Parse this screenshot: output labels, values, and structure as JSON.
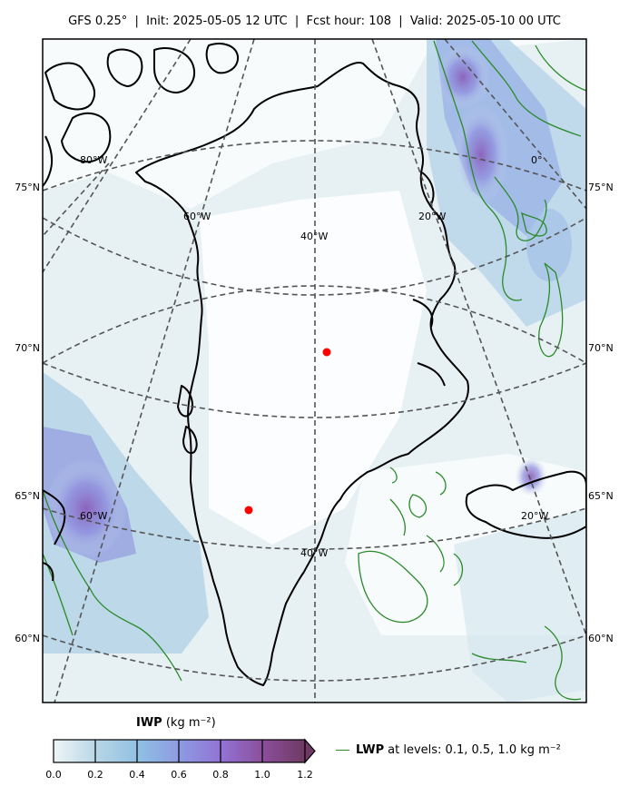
{
  "header": {
    "title": "GFS 0.25°  |  Init: 2025-05-05 12 UTC  |  Fcst hour: 108  |  Valid: 2025-05-10 00 UTC"
  },
  "map": {
    "lat_labels_left": [
      "75°N",
      "70°N",
      "65°N",
      "60°N"
    ],
    "lat_labels_right": [
      "75°N",
      "70°N",
      "65°N",
      "60°N"
    ],
    "lon_labels": [
      "80°W",
      "60°W",
      "40°W",
      "20°W",
      "0°",
      "60°W",
      "40°W",
      "20°W"
    ],
    "markers": [
      "red-dot-center",
      "red-dot-southwest"
    ]
  },
  "colorbar": {
    "title_bold": "IWP",
    "title_units": " (kg m⁻²)",
    "ticks": [
      "0.0",
      "0.2",
      "0.4",
      "0.6",
      "0.8",
      "1.0",
      "1.2"
    ],
    "colors": [
      "#e6f1f3",
      "#9cc3e2",
      "#8ea7e4",
      "#957cd8",
      "#8f55a8",
      "#7a3f75"
    ]
  },
  "legend": {
    "label_bold": "LWP",
    "label_rest": "at levels: 0.1, 0.5, 1.0  kg m⁻²",
    "line_color": "#2a8a2a"
  }
}
